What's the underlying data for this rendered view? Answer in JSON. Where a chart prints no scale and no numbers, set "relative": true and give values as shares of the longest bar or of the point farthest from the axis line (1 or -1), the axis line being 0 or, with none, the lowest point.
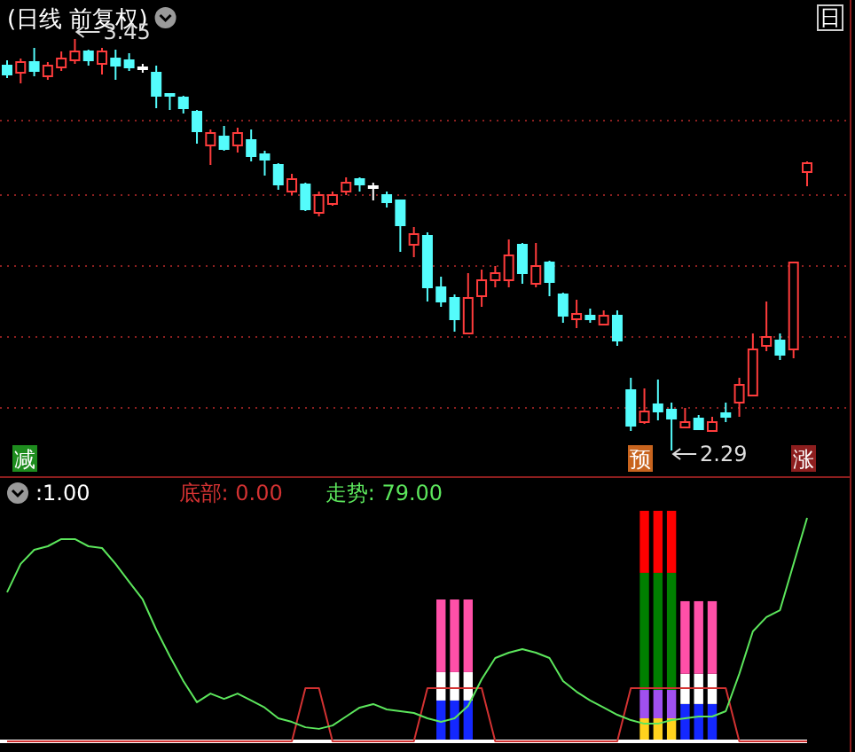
{
  "chart_data": [
    {
      "type": "candlestick",
      "title": "(日线 前复权)",
      "grid": "y",
      "yticks": [
        {
          "value": 3.22,
          "label": null
        },
        {
          "value": 3.01,
          "label": null
        },
        {
          "value": 2.81,
          "label": null
        },
        {
          "value": 2.61,
          "label": null
        },
        {
          "value": 2.41,
          "label": null
        }
      ],
      "categories": [
        null,
        null,
        null,
        null,
        null,
        null,
        null,
        null,
        null,
        null,
        null,
        null,
        null,
        null,
        null,
        null,
        null,
        null,
        null,
        null,
        null,
        null,
        null,
        null,
        null,
        null,
        null,
        null,
        null,
        null,
        null,
        null,
        null,
        null,
        null,
        null,
        null,
        null,
        null,
        null,
        null,
        null,
        null,
        null,
        null,
        null,
        null,
        null,
        null,
        null,
        null,
        null,
        null,
        null,
        null,
        null,
        null,
        null,
        null,
        null
      ],
      "ohlc": [
        [
          3.375,
          3.39,
          3.34,
          3.35
        ],
        [
          3.355,
          3.395,
          3.325,
          3.385
        ],
        [
          3.385,
          3.425,
          3.345,
          3.36
        ],
        [
          3.345,
          3.385,
          3.335,
          3.375
        ],
        [
          3.37,
          3.415,
          3.36,
          3.395
        ],
        [
          3.39,
          3.45,
          3.38,
          3.415
        ],
        [
          3.415,
          3.42,
          3.375,
          3.39
        ],
        [
          3.38,
          3.425,
          3.35,
          3.415
        ],
        [
          3.395,
          3.42,
          3.335,
          3.375
        ],
        [
          3.39,
          3.41,
          3.36,
          3.37
        ],
        [
          3.37,
          3.38,
          3.355,
          3.365
        ],
        [
          3.355,
          3.375,
          3.255,
          3.29
        ],
        [
          3.295,
          3.295,
          3.25,
          3.29
        ],
        [
          3.285,
          3.29,
          3.24,
          3.255
        ],
        [
          3.245,
          3.25,
          3.155,
          3.19
        ],
        [
          3.15,
          3.195,
          3.095,
          3.185
        ],
        [
          3.175,
          3.205,
          3.135,
          3.14
        ],
        [
          3.15,
          3.2,
          3.13,
          3.185
        ],
        [
          3.165,
          3.195,
          3.105,
          3.12
        ],
        [
          3.125,
          3.135,
          3.065,
          3.11
        ],
        [
          3.095,
          3.1,
          3.025,
          3.04
        ],
        [
          3.02,
          3.07,
          3.01,
          3.055
        ],
        [
          3.04,
          3.045,
          2.965,
          2.97
        ],
        [
          2.96,
          3.02,
          2.95,
          3.01
        ],
        [
          2.985,
          3.02,
          2.98,
          3.01
        ],
        [
          3.02,
          3.06,
          3.01,
          3.045
        ],
        [
          3.055,
          3.06,
          3.02,
          3.04
        ],
        [
          3.035,
          3.045,
          2.995,
          3.03
        ],
        [
          3.01,
          3.02,
          2.975,
          2.99
        ],
        [
          2.995,
          2.995,
          2.85,
          2.925
        ],
        [
          2.87,
          2.92,
          2.835,
          2.9
        ],
        [
          2.895,
          2.905,
          2.71,
          2.75
        ],
        [
          2.75,
          2.78,
          2.695,
          2.71
        ],
        [
          2.72,
          2.73,
          2.625,
          2.66
        ],
        [
          2.62,
          2.79,
          2.62,
          2.72
        ],
        [
          2.725,
          2.8,
          2.695,
          2.77
        ],
        [
          2.77,
          2.81,
          2.75,
          2.79
        ],
        [
          2.77,
          2.885,
          2.75,
          2.84
        ],
        [
          2.87,
          2.875,
          2.76,
          2.79
        ],
        [
          2.76,
          2.875,
          2.75,
          2.81
        ],
        [
          2.82,
          2.825,
          2.725,
          2.765
        ],
        [
          2.73,
          2.735,
          2.65,
          2.67
        ],
        [
          2.66,
          2.715,
          2.635,
          2.675
        ],
        [
          2.67,
          2.69,
          2.65,
          2.66
        ],
        [
          2.645,
          2.685,
          2.645,
          2.67
        ],
        [
          2.67,
          2.685,
          2.585,
          2.6
        ],
        [
          2.46,
          2.495,
          2.345,
          2.36
        ],
        [
          2.37,
          2.465,
          2.365,
          2.4
        ],
        [
          2.42,
          2.49,
          2.375,
          2.4
        ],
        [
          2.405,
          2.425,
          2.29,
          2.38
        ],
        [
          2.355,
          2.41,
          2.355,
          2.37
        ],
        [
          2.38,
          2.39,
          2.35,
          2.35
        ],
        [
          2.345,
          2.385,
          2.345,
          2.37
        ],
        [
          2.395,
          2.425,
          2.37,
          2.385
        ],
        [
          2.425,
          2.495,
          2.385,
          2.475
        ],
        [
          2.445,
          2.62,
          2.445,
          2.575
        ],
        [
          2.585,
          2.71,
          2.57,
          2.61
        ],
        [
          2.6,
          2.62,
          2.545,
          2.56
        ],
        [
          2.575,
          2.82,
          2.55,
          2.82
        ],
        [
          3.075,
          3.105,
          3.035,
          3.1
        ]
      ],
      "colors": [
        "#54fcfc",
        "#ff3c3c",
        "#54fcfc",
        "#ff3c3c",
        "#ff3c3c",
        "#ff3c3c",
        "#54fcfc",
        "#ff3c3c",
        "#54fcfc",
        "#54fcfc",
        "#ffffff",
        "#54fcfc",
        "#54fcfc",
        "#54fcfc",
        "#54fcfc",
        "#ff3c3c",
        "#54fcfc",
        "#ff3c3c",
        "#54fcfc",
        "#54fcfc",
        "#54fcfc",
        "#ff3c3c",
        "#54fcfc",
        "#ff3c3c",
        "#ff3c3c",
        "#ff3c3c",
        "#54fcfc",
        "#ffffff",
        "#54fcfc",
        "#54fcfc",
        "#ff3c3c",
        "#54fcfc",
        "#54fcfc",
        "#54fcfc",
        "#ff3c3c",
        "#ff3c3c",
        "#ff3c3c",
        "#ff3c3c",
        "#54fcfc",
        "#ff3c3c",
        "#54fcfc",
        "#54fcfc",
        "#ff3c3c",
        "#54fcfc",
        "#ff3c3c",
        "#54fcfc",
        "#54fcfc",
        "#ff3c3c",
        "#54fcfc",
        "#54fcfc",
        "#ff3c3c",
        "#54fcfc",
        "#ff3c3c",
        "#54fcfc",
        "#ff3c3c",
        "#ff3c3c",
        "#ff3c3c",
        "#54fcfc",
        "#ff3c3c",
        "#ff3c3c"
      ],
      "annotations": [
        "3.45",
        "2.29",
        "减",
        "预",
        "涨",
        "日"
      ]
    },
    {
      "type": "line",
      "relative": true,
      "line_style": "solid",
      "categories": [
        null,
        null,
        null,
        null,
        null,
        null,
        null,
        null,
        null,
        null,
        null,
        null,
        null,
        null,
        null,
        null,
        null,
        null,
        null,
        null,
        null,
        null,
        null,
        null,
        null,
        null,
        null,
        null,
        null,
        null,
        null,
        null,
        null,
        null,
        null,
        null,
        null,
        null,
        null,
        null,
        null,
        null,
        null,
        null,
        null,
        null,
        null,
        null,
        null,
        null,
        null,
        null,
        null,
        null,
        null,
        null,
        null,
        null,
        null,
        null
      ],
      "annotations": [
        ":1.00"
      ],
      "series": [
        {
          "name": "底部: 0.00",
          "color": "#d23232",
          "values": [
            0,
            0,
            0,
            0,
            0,
            0,
            0,
            0,
            0,
            0,
            0,
            0,
            0,
            0,
            0,
            0,
            0,
            0,
            0,
            0,
            0,
            0,
            0.238,
            0.238,
            0,
            0,
            0,
            0,
            0,
            0,
            0,
            0.238,
            0.238,
            0.238,
            0.238,
            0.238,
            0,
            0,
            0,
            0,
            0,
            0,
            0,
            0,
            0,
            0,
            0.238,
            0.238,
            0.238,
            0.238,
            0.238,
            0.238,
            0.238,
            0.238,
            0,
            0,
            0,
            0,
            0,
            0
          ]
        },
        {
          "name": "走势: 79.00",
          "color": "#5ce65c",
          "values": [
            0.667,
            0.794,
            0.857,
            0.873,
            0.905,
            0.905,
            0.873,
            0.865,
            0.794,
            0.714,
            0.635,
            0.5,
            0.381,
            0.27,
            0.175,
            0.214,
            0.19,
            0.214,
            0.183,
            0.151,
            0.103,
            0.087,
            0.063,
            0.056,
            0.071,
            0.111,
            0.151,
            0.167,
            0.143,
            0.135,
            0.127,
            0.103,
            0.087,
            0.103,
            0.159,
            0.278,
            0.373,
            0.397,
            0.413,
            0.397,
            0.373,
            0.27,
            0.222,
            0.183,
            0.151,
            0.119,
            0.095,
            0.079,
            0.079,
            0.095,
            0.103,
            0.111,
            0.111,
            0.135,
            0.302,
            0.492,
            0.556,
            0.587,
            0.794,
            1
          ]
        }
      ]
    },
    {
      "type": "bar",
      "relative": true,
      "stacked": true,
      "categories": [
        null,
        null,
        null
      ],
      "series": [
        {
          "color": "#1428ff",
          "values": [
            0.288,
            0.288,
            0.288
          ]
        },
        {
          "color": "#ffffff",
          "values": [
            0.2,
            0.2,
            0.2
          ]
        },
        {
          "color": "#ff50a8",
          "values": [
            0.512,
            0.512,
            0.512
          ]
        }
      ]
    },
    {
      "type": "bar",
      "relative": true,
      "stacked": true,
      "categories": [
        null,
        null,
        null,
        null,
        null,
        null
      ],
      "series": [
        {
          "color": "#ffd21e",
          "values": [
            0.1,
            0.1,
            0.1,
            null,
            null,
            null
          ]
        },
        {
          "color": "#a050f0",
          "values": [
            0.123,
            0.123,
            0.123,
            null,
            null,
            null
          ]
        },
        {
          "color": "#008000",
          "values": [
            0.508,
            0.508,
            0.508,
            null,
            null,
            null
          ]
        },
        {
          "color": "#ff0000",
          "values": [
            0.269,
            0.269,
            0.269,
            null,
            null,
            null
          ]
        },
        {
          "color": "#1428ff",
          "values": [
            null,
            null,
            null,
            0.162,
            0.162,
            0.162
          ]
        },
        {
          "color": "#ffffff",
          "values": [
            null,
            null,
            null,
            0.131,
            0.131,
            0.131
          ]
        },
        {
          "color": "#ff50a8",
          "values": [
            null,
            null,
            null,
            0.315,
            0.315,
            0.315
          ]
        }
      ]
    }
  ]
}
